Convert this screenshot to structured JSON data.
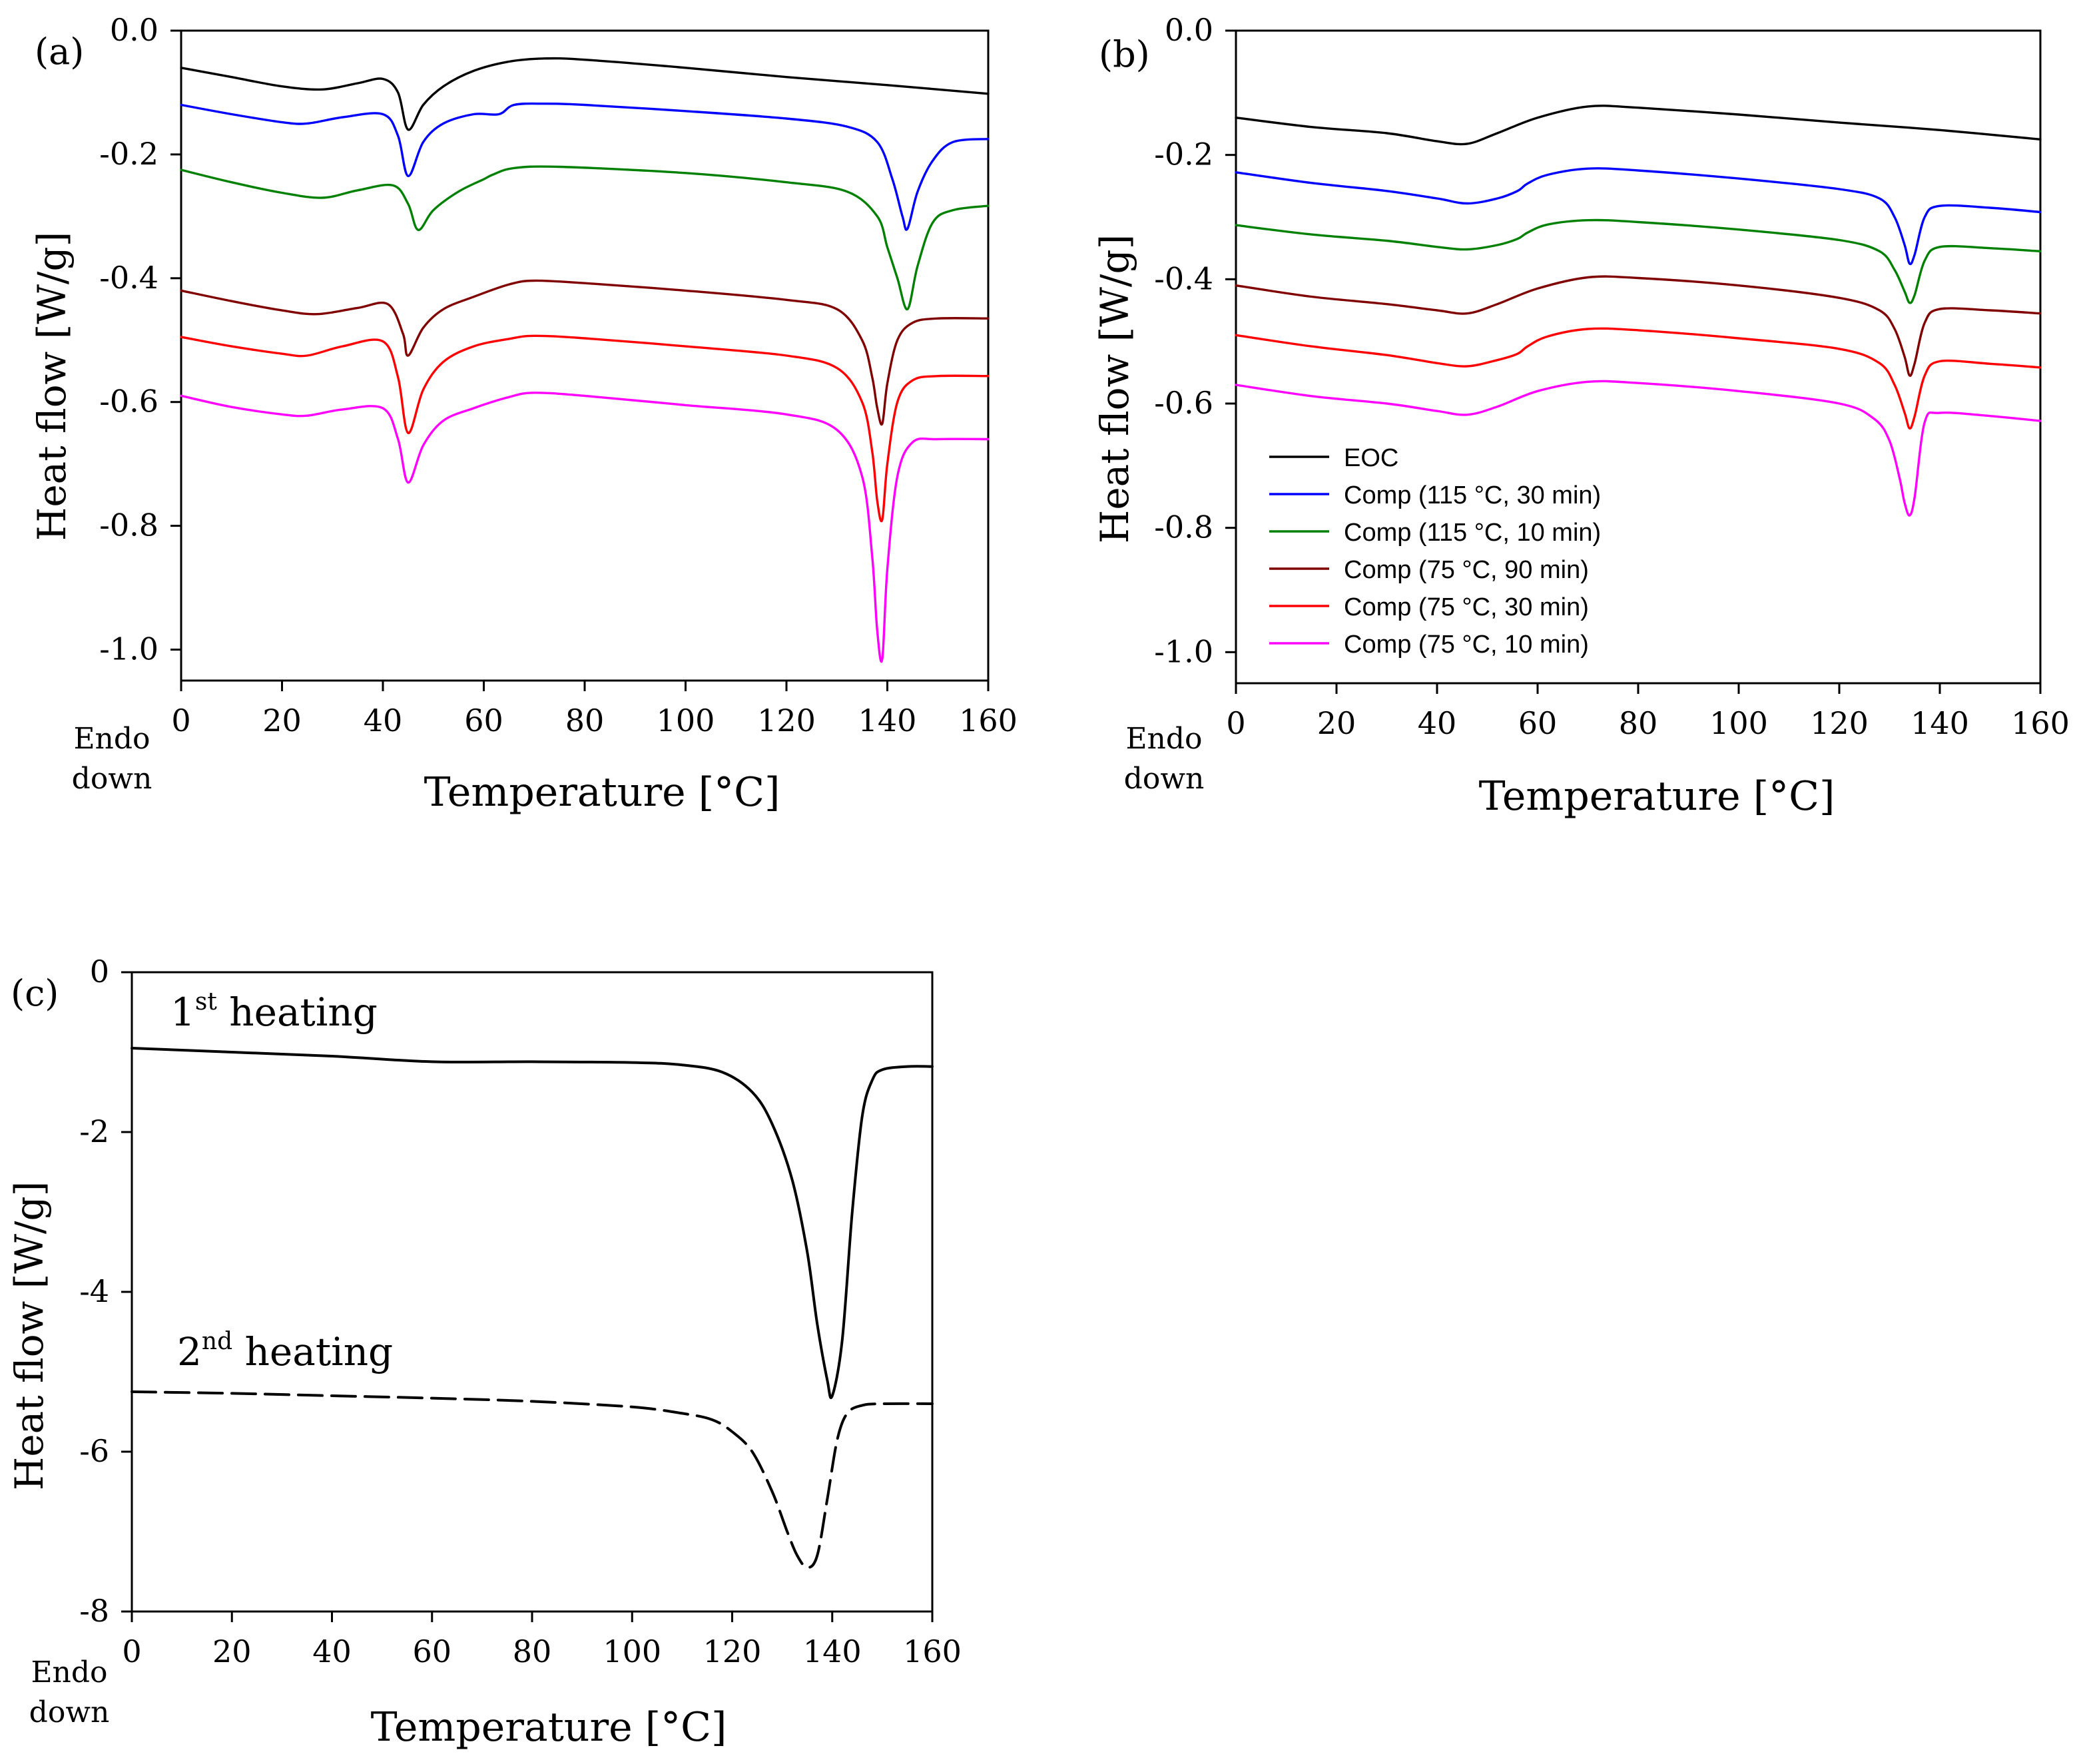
{
  "figure": {
    "endo_label_line1": "Endo",
    "endo_label_line2": "down"
  },
  "chart_data": [
    {
      "id": "a",
      "type": "line",
      "panel_label": "(a)",
      "xlabel": "Temperature [°C]",
      "ylabel": "Heat flow [W/g]",
      "xlim": [
        0,
        160
      ],
      "ylim": [
        -1.05,
        0.0
      ],
      "xticks": [
        0,
        20,
        40,
        60,
        80,
        100,
        120,
        140,
        160
      ],
      "yticks": [
        0.0,
        -0.2,
        -0.4,
        -0.6,
        -0.8,
        -1.0
      ],
      "ytick_labels": [
        "0.0",
        "-0.2",
        "-0.4",
        "-0.6",
        "-0.8",
        "-1.0"
      ],
      "grid": false,
      "series": [
        {
          "name": "EOC",
          "color": "#000000",
          "x": [
            0,
            10,
            20,
            28,
            35,
            40,
            43,
            45,
            48,
            52,
            58,
            65,
            72,
            80,
            100,
            120,
            140,
            160
          ],
          "y": [
            -0.06,
            -0.075,
            -0.09,
            -0.095,
            -0.085,
            -0.078,
            -0.1,
            -0.16,
            -0.12,
            -0.09,
            -0.065,
            -0.05,
            -0.045,
            -0.047,
            -0.06,
            -0.075,
            -0.088,
            -0.102
          ]
        },
        {
          "name": "Comp (115 °C, 30 min)",
          "color": "#0000ff",
          "x": [
            0,
            10,
            20,
            25,
            32,
            40,
            43,
            45,
            48,
            52,
            58,
            63,
            66,
            72,
            80,
            100,
            120,
            132,
            138,
            141,
            143,
            144,
            146,
            149,
            153,
            160
          ],
          "y": [
            -0.12,
            -0.135,
            -0.148,
            -0.15,
            -0.14,
            -0.135,
            -0.17,
            -0.235,
            -0.18,
            -0.15,
            -0.135,
            -0.135,
            -0.12,
            -0.118,
            -0.12,
            -0.13,
            -0.142,
            -0.155,
            -0.18,
            -0.24,
            -0.3,
            -0.32,
            -0.26,
            -0.21,
            -0.18,
            -0.175
          ]
        },
        {
          "name": "Comp (115 °C, 10 min)",
          "color": "#008000",
          "x": [
            0,
            10,
            20,
            28,
            35,
            42,
            45,
            47,
            50,
            55,
            60,
            62,
            66,
            75,
            100,
            120,
            132,
            138,
            140,
            142,
            144,
            146,
            149,
            153,
            160
          ],
          "y": [
            -0.225,
            -0.245,
            -0.262,
            -0.27,
            -0.258,
            -0.25,
            -0.28,
            -0.322,
            -0.29,
            -0.26,
            -0.24,
            -0.232,
            -0.222,
            -0.22,
            -0.23,
            -0.245,
            -0.26,
            -0.3,
            -0.35,
            -0.4,
            -0.45,
            -0.38,
            -0.31,
            -0.29,
            -0.283
          ]
        },
        {
          "name": "Comp (75 °C, 90 min)",
          "color": "#800000",
          "x": [
            0,
            10,
            20,
            27,
            35,
            41,
            44,
            45,
            48,
            52,
            58,
            65,
            70,
            80,
            100,
            120,
            130,
            135,
            137,
            138,
            139,
            140,
            142,
            145,
            150,
            160
          ],
          "y": [
            -0.42,
            -0.437,
            -0.452,
            -0.458,
            -0.448,
            -0.442,
            -0.49,
            -0.525,
            -0.48,
            -0.45,
            -0.43,
            -0.41,
            -0.404,
            -0.408,
            -0.42,
            -0.435,
            -0.45,
            -0.5,
            -0.56,
            -0.61,
            -0.635,
            -0.57,
            -0.5,
            -0.472,
            -0.465,
            -0.465
          ]
        },
        {
          "name": "Comp (75 °C, 30 min)",
          "color": "#ff0000",
          "x": [
            0,
            10,
            20,
            25,
            32,
            40,
            43,
            45,
            48,
            52,
            58,
            65,
            70,
            80,
            100,
            120,
            130,
            135,
            137,
            138,
            139,
            140,
            142,
            145,
            150,
            160
          ],
          "y": [
            -0.495,
            -0.51,
            -0.522,
            -0.525,
            -0.51,
            -0.502,
            -0.56,
            -0.65,
            -0.58,
            -0.535,
            -0.51,
            -0.498,
            -0.493,
            -0.497,
            -0.51,
            -0.525,
            -0.545,
            -0.6,
            -0.68,
            -0.76,
            -0.79,
            -0.7,
            -0.6,
            -0.565,
            -0.558,
            -0.558
          ]
        },
        {
          "name": "Comp (75 °C, 10 min)",
          "color": "#ff00ff",
          "x": [
            0,
            10,
            20,
            25,
            32,
            40,
            43,
            45,
            48,
            52,
            58,
            65,
            70,
            80,
            100,
            120,
            130,
            135,
            137,
            138,
            139,
            140,
            142,
            145,
            150,
            160
          ],
          "y": [
            -0.59,
            -0.608,
            -0.62,
            -0.622,
            -0.612,
            -0.61,
            -0.66,
            -0.73,
            -0.67,
            -0.63,
            -0.61,
            -0.592,
            -0.585,
            -0.59,
            -0.605,
            -0.62,
            -0.645,
            -0.72,
            -0.85,
            -0.97,
            -1.015,
            -0.87,
            -0.72,
            -0.665,
            -0.66,
            -0.66
          ]
        }
      ]
    },
    {
      "id": "b",
      "type": "line",
      "panel_label": "(b)",
      "xlabel": "Temperature [°C]",
      "ylabel": "Heat flow [W/g]",
      "xlim": [
        0,
        160
      ],
      "ylim": [
        -1.05,
        0.0
      ],
      "xticks": [
        0,
        20,
        40,
        60,
        80,
        100,
        120,
        140,
        160
      ],
      "yticks": [
        0.0,
        -0.2,
        -0.4,
        -0.6,
        -0.8,
        -1.0
      ],
      "ytick_labels": [
        "0.0",
        "-0.2",
        "-0.4",
        "-0.6",
        "-0.8",
        "-1.0"
      ],
      "grid": false,
      "legend": "bottom-left",
      "series": [
        {
          "name": "EOC",
          "color": "#000000",
          "x": [
            0,
            15,
            30,
            40,
            46,
            52,
            60,
            70,
            80,
            100,
            120,
            140,
            160
          ],
          "y": [
            -0.14,
            -0.155,
            -0.165,
            -0.178,
            -0.182,
            -0.165,
            -0.14,
            -0.122,
            -0.124,
            -0.135,
            -0.148,
            -0.16,
            -0.175
          ]
        },
        {
          "name": "Comp (115 °C, 30 min)",
          "color": "#0000ff",
          "x": [
            0,
            15,
            30,
            40,
            46,
            52,
            56,
            58,
            62,
            70,
            80,
            100,
            120,
            128,
            131,
            133,
            134,
            135,
            137,
            140,
            150,
            160
          ],
          "y": [
            -0.228,
            -0.245,
            -0.258,
            -0.27,
            -0.278,
            -0.27,
            -0.258,
            -0.246,
            -0.232,
            -0.222,
            -0.225,
            -0.238,
            -0.255,
            -0.27,
            -0.3,
            -0.345,
            -0.375,
            -0.36,
            -0.3,
            -0.282,
            -0.285,
            -0.292
          ]
        },
        {
          "name": "Comp (115 °C, 10 min)",
          "color": "#008000",
          "x": [
            0,
            15,
            30,
            40,
            46,
            52,
            56,
            58,
            62,
            70,
            80,
            100,
            120,
            128,
            131,
            133,
            134,
            135,
            137,
            140,
            150,
            160
          ],
          "y": [
            -0.313,
            -0.328,
            -0.338,
            -0.348,
            -0.352,
            -0.345,
            -0.335,
            -0.325,
            -0.312,
            -0.305,
            -0.308,
            -0.32,
            -0.337,
            -0.355,
            -0.385,
            -0.42,
            -0.438,
            -0.425,
            -0.37,
            -0.348,
            -0.35,
            -0.355
          ]
        },
        {
          "name": "Comp (75 °C, 90 min)",
          "color": "#800000",
          "x": [
            0,
            15,
            30,
            40,
            46,
            52,
            60,
            70,
            80,
            100,
            120,
            128,
            131,
            133,
            134,
            135,
            137,
            140,
            150,
            160
          ],
          "y": [
            -0.41,
            -0.428,
            -0.44,
            -0.45,
            -0.455,
            -0.44,
            -0.415,
            -0.397,
            -0.398,
            -0.41,
            -0.43,
            -0.45,
            -0.48,
            -0.525,
            -0.555,
            -0.535,
            -0.47,
            -0.448,
            -0.45,
            -0.455
          ]
        },
        {
          "name": "Comp (75 °C, 30 min)",
          "color": "#ff0000",
          "x": [
            0,
            15,
            30,
            40,
            46,
            52,
            56,
            58,
            62,
            70,
            80,
            100,
            120,
            128,
            131,
            133,
            134,
            135,
            137,
            140,
            150,
            160
          ],
          "y": [
            -0.49,
            -0.508,
            -0.522,
            -0.535,
            -0.54,
            -0.53,
            -0.52,
            -0.508,
            -0.492,
            -0.48,
            -0.482,
            -0.495,
            -0.512,
            -0.535,
            -0.57,
            -0.615,
            -0.64,
            -0.62,
            -0.555,
            -0.532,
            -0.536,
            -0.542
          ]
        },
        {
          "name": "Comp (75 °C, 10 min)",
          "color": "#ff00ff",
          "x": [
            0,
            15,
            30,
            40,
            46,
            52,
            60,
            70,
            80,
            100,
            120,
            127,
            130,
            132,
            133,
            134,
            135,
            137,
            140,
            150,
            160
          ],
          "y": [
            -0.57,
            -0.588,
            -0.6,
            -0.612,
            -0.618,
            -0.605,
            -0.58,
            -0.565,
            -0.567,
            -0.58,
            -0.6,
            -0.625,
            -0.66,
            -0.72,
            -0.76,
            -0.78,
            -0.75,
            -0.63,
            -0.615,
            -0.62,
            -0.628
          ]
        }
      ]
    },
    {
      "id": "c",
      "type": "line",
      "panel_label": "(c)",
      "xlabel": "Temperature [°C]",
      "ylabel": "Heat flow [W/g]",
      "xlim": [
        0,
        160
      ],
      "ylim": [
        -8,
        0
      ],
      "xticks": [
        0,
        20,
        40,
        60,
        80,
        100,
        120,
        140,
        160
      ],
      "yticks": [
        0,
        -2,
        -4,
        -6,
        -8
      ],
      "ytick_labels": [
        "0",
        "-2",
        "-4",
        "-6",
        "-8"
      ],
      "grid": false,
      "annotations": [
        {
          "base": "1",
          "sup": "st",
          "text": " heating"
        },
        {
          "base": "2",
          "sup": "nd",
          "text": " heating"
        }
      ],
      "series": [
        {
          "name": "1st heating",
          "dash": "solid",
          "color": "#000000",
          "x": [
            0,
            20,
            40,
            60,
            80,
            100,
            110,
            118,
            124,
            128,
            132,
            135,
            137,
            139,
            140,
            142,
            144,
            146,
            148,
            150,
            155,
            160
          ],
          "y": [
            -0.95,
            -1.0,
            -1.05,
            -1.12,
            -1.12,
            -1.13,
            -1.16,
            -1.25,
            -1.5,
            -1.9,
            -2.6,
            -3.5,
            -4.4,
            -5.1,
            -5.3,
            -4.6,
            -3.0,
            -1.8,
            -1.35,
            -1.22,
            -1.18,
            -1.18
          ]
        },
        {
          "name": "2nd heating",
          "dash": "dashed",
          "color": "#000000",
          "x": [
            0,
            20,
            40,
            60,
            80,
            100,
            110,
            116,
            120,
            124,
            128,
            131,
            133,
            135,
            137,
            139,
            141,
            143,
            146,
            150,
            160
          ],
          "y": [
            -5.25,
            -5.27,
            -5.3,
            -5.33,
            -5.37,
            -5.44,
            -5.52,
            -5.6,
            -5.75,
            -6.0,
            -6.5,
            -7.0,
            -7.3,
            -7.45,
            -7.3,
            -6.6,
            -5.85,
            -5.52,
            -5.42,
            -5.4,
            -5.4
          ]
        }
      ]
    }
  ]
}
